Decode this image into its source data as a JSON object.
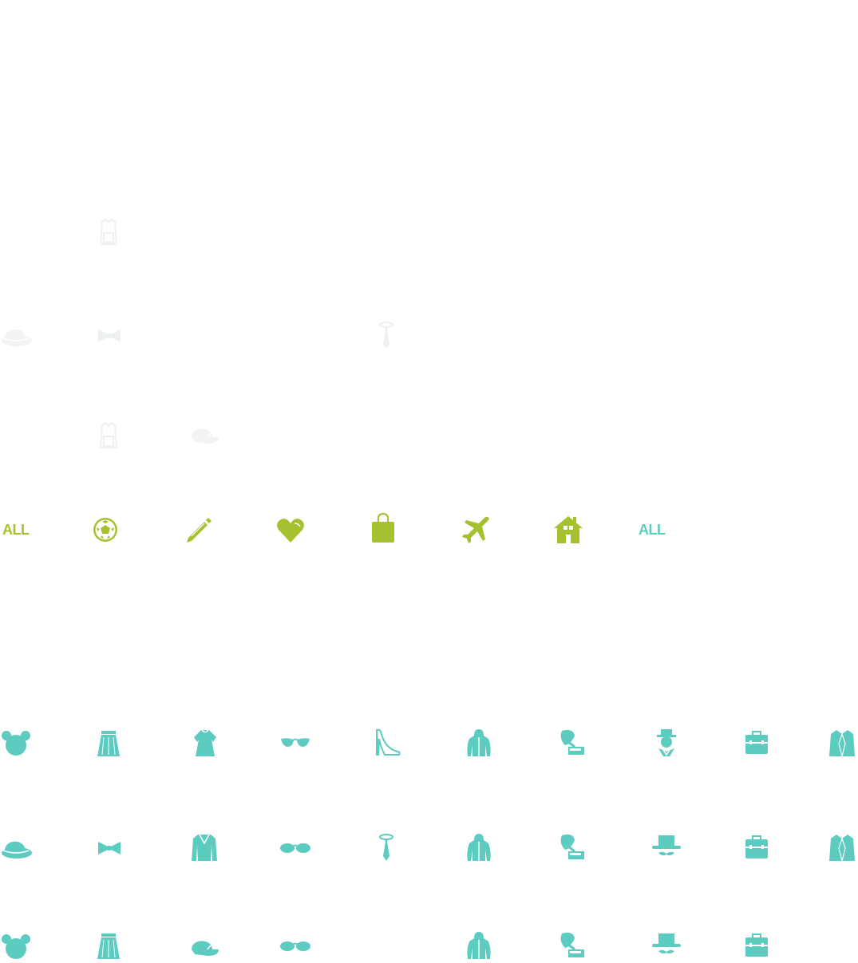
{
  "colors": {
    "green": "#a6c12f",
    "teal": "#5ccbc0",
    "faint": "#f1f3f4",
    "white": "#ffffff"
  },
  "green_row": {
    "all_label": "ALL",
    "icons": [
      "soccer-ball-icon",
      "pencil-icon",
      "heart-icon",
      "shopping-bag-icon",
      "airplane-icon",
      "house-icon"
    ]
  },
  "teal_all_label": "ALL",
  "faint_rows": [
    [
      "shirt-icon"
    ],
    [
      "bowler-hat-icon",
      "bow-tie-icon",
      "necktie-icon"
    ],
    [
      "shirt-icon",
      "cap-icon"
    ]
  ],
  "teal_rows": [
    [
      "mouse-ears-icon",
      "skirt-icon",
      "dress-icon",
      "cat-eye-glasses-icon",
      "high-heel-icon",
      "hoodie-icon",
      "gramophone-icon",
      "gentleman-icon",
      "briefcase-icon",
      "blazer-icon"
    ],
    [
      "bowler-hat-icon",
      "bow-tie-icon",
      "sweater-icon",
      "sunglasses-icon",
      "necktie-icon",
      "hoodie-icon",
      "gramophone-icon",
      "top-hat-mustache-icon",
      "briefcase-icon",
      "blazer-icon"
    ],
    [
      "mouse-ears-icon",
      "skirt-icon",
      "cap-icon",
      "sunglasses-icon",
      "hoodie-icon",
      "gramophone-icon",
      "top-hat-mustache-icon",
      "briefcase-icon"
    ]
  ]
}
